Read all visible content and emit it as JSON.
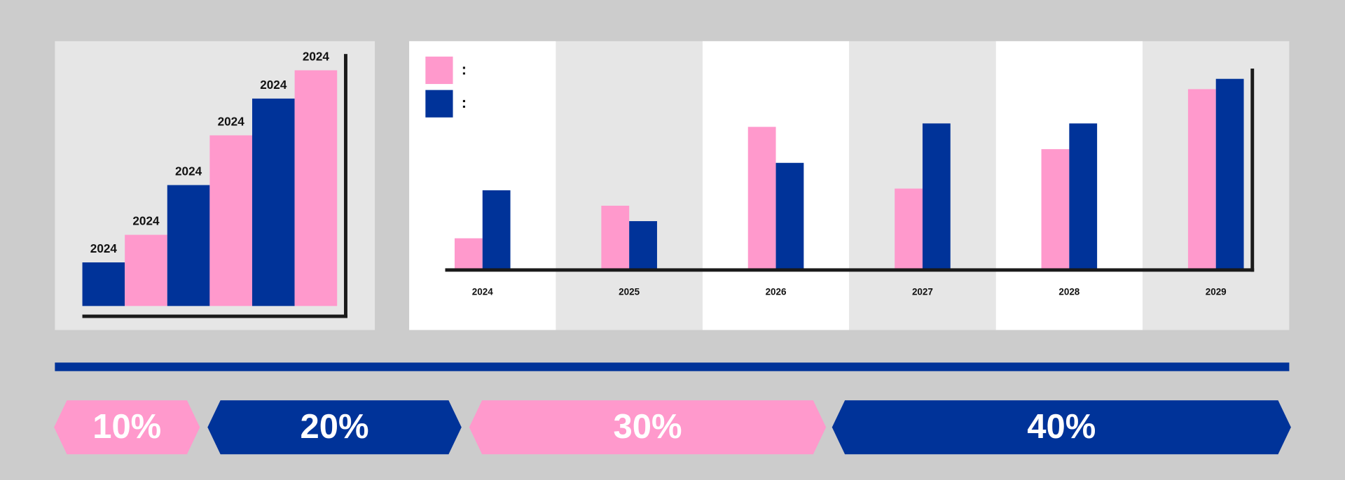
{
  "chart_data": [
    {
      "type": "bar",
      "categories": [
        "2024",
        "2024",
        "2024",
        "2024",
        "2024",
        "2024"
      ],
      "values": [
        18.5,
        30.2,
        51.3,
        72.4,
        88,
        100
      ],
      "colors": [
        "#003399",
        "#ff99cc",
        "#003399",
        "#ff99cc",
        "#003399",
        "#ff99cc"
      ],
      "ylim": [
        0,
        100
      ]
    },
    {
      "type": "grouped_bar",
      "categories": [
        "2024",
        "2025",
        "2026",
        "2027",
        "2028",
        "2029"
      ],
      "series": [
        {
          "name": ":",
          "color": "#ff99cc",
          "values": [
            37,
            75,
            167,
            95,
            141,
            211
          ]
        },
        {
          "name": ":",
          "color": "#003399",
          "values": [
            93,
            57,
            125,
            171,
            171,
            223
          ]
        }
      ],
      "ylim": [
        0,
        235
      ]
    }
  ],
  "banners": [
    {
      "label": "10%",
      "color": "#ff99cc"
    },
    {
      "label": "20%",
      "color": "#003399"
    },
    {
      "label": "30%",
      "color": "#ff99cc"
    },
    {
      "label": "40%",
      "color": "#003399"
    }
  ]
}
